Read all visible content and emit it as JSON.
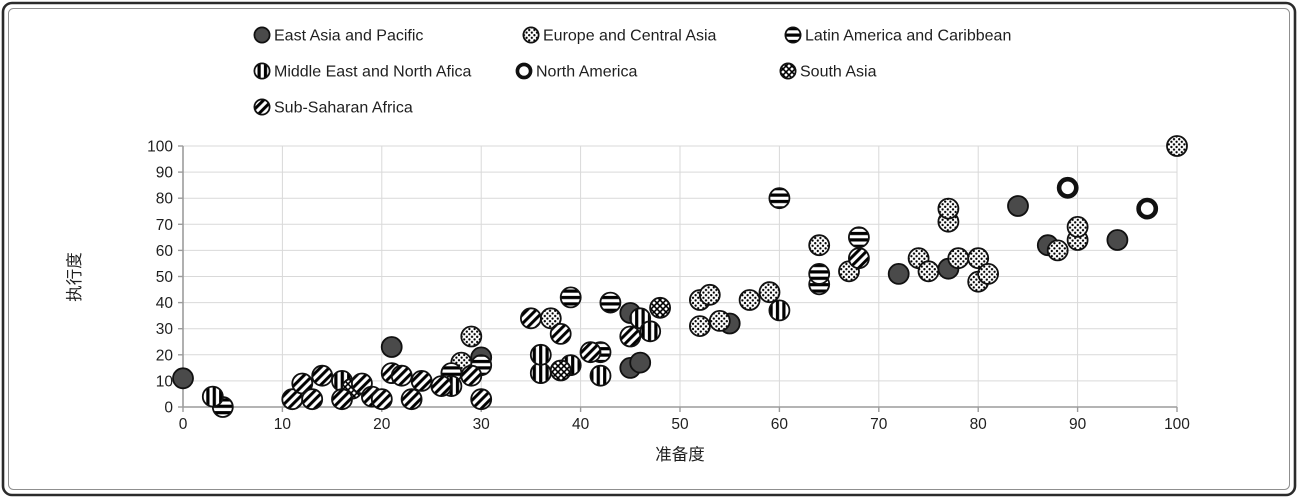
{
  "frame": {
    "background": "#ffffff",
    "border_color": "#2b2b2b",
    "inner_border_color": "#8f8f8f"
  },
  "colors": {
    "solid_point_fill": "#4a4a4a",
    "point_outline": "#111111",
    "gridline": "#d9d9d9",
    "axis_line": "#9c9c9c",
    "text": "#1f1f1f"
  },
  "chart_data": {
    "type": "scatter",
    "title": "",
    "xlabel": "准备度",
    "ylabel": "执行度",
    "xlim": [
      0,
      100
    ],
    "ylim": [
      0,
      100
    ],
    "xticks": [
      0,
      10,
      20,
      30,
      40,
      50,
      60,
      70,
      80,
      90,
      100
    ],
    "yticks": [
      0,
      10,
      20,
      30,
      40,
      50,
      60,
      70,
      80,
      90,
      100
    ],
    "grid": "both-light-gray",
    "legend_position": "top-left-three-rows",
    "series": [
      {
        "name": "East Asia and Pacific",
        "marker": "filled-circle",
        "points": [
          [
            0,
            11
          ],
          [
            21,
            23
          ],
          [
            30,
            19
          ],
          [
            45,
            36
          ],
          [
            45,
            15
          ],
          [
            46,
            17
          ],
          [
            55,
            32
          ],
          [
            72,
            51
          ],
          [
            77,
            53
          ],
          [
            84,
            77
          ],
          [
            87,
            62
          ],
          [
            94,
            64
          ]
        ]
      },
      {
        "name": "Europe and Central Asia",
        "marker": "dotted-circle",
        "points": [
          [
            28,
            17
          ],
          [
            29,
            27
          ],
          [
            37,
            34
          ],
          [
            52,
            31
          ],
          [
            52,
            41
          ],
          [
            53,
            43
          ],
          [
            54,
            33
          ],
          [
            57,
            41
          ],
          [
            59,
            44
          ],
          [
            64,
            62
          ],
          [
            67,
            52
          ],
          [
            74,
            57
          ],
          [
            75,
            52
          ],
          [
            77,
            71
          ],
          [
            77,
            76
          ],
          [
            78,
            57
          ],
          [
            80,
            48
          ],
          [
            80,
            57
          ],
          [
            81,
            51
          ],
          [
            88,
            60
          ],
          [
            90,
            64
          ],
          [
            90,
            69
          ],
          [
            100,
            100
          ]
        ]
      },
      {
        "name": "Latin America and Caribbean",
        "marker": "horizontal-stripe-circle",
        "points": [
          [
            4,
            0
          ],
          [
            27,
            13
          ],
          [
            30,
            16
          ],
          [
            39,
            42
          ],
          [
            42,
            21
          ],
          [
            43,
            40
          ],
          [
            60,
            80
          ],
          [
            64,
            47
          ],
          [
            64,
            51
          ],
          [
            68,
            65
          ]
        ]
      },
      {
        "name": "Middle East and North Afica",
        "marker": "vertical-stripe-circle",
        "points": [
          [
            3,
            4
          ],
          [
            16,
            10
          ],
          [
            27,
            8
          ],
          [
            36,
            13
          ],
          [
            36,
            20
          ],
          [
            39,
            16
          ],
          [
            42,
            12
          ],
          [
            46,
            34
          ],
          [
            47,
            29
          ],
          [
            60,
            37
          ]
        ]
      },
      {
        "name": "North America",
        "marker": "bold-open-circle",
        "points": [
          [
            89,
            84
          ],
          [
            97,
            76
          ]
        ]
      },
      {
        "name": "South Asia",
        "marker": "crosshatch-circle",
        "points": [
          [
            17,
            7
          ],
          [
            38,
            14
          ],
          [
            48,
            38
          ]
        ]
      },
      {
        "name": "Sub-Saharan Africa",
        "marker": "diagonal-stripe-circle",
        "points": [
          [
            11,
            3
          ],
          [
            12,
            9
          ],
          [
            13,
            3
          ],
          [
            14,
            12
          ],
          [
            16,
            3
          ],
          [
            18,
            9
          ],
          [
            19,
            4
          ],
          [
            20,
            3
          ],
          [
            21,
            13
          ],
          [
            22,
            12
          ],
          [
            23,
            3
          ],
          [
            24,
            10
          ],
          [
            26,
            8
          ],
          [
            29,
            12
          ],
          [
            30,
            3
          ],
          [
            35,
            34
          ],
          [
            38,
            28
          ],
          [
            41,
            21
          ],
          [
            45,
            27
          ],
          [
            68,
            57
          ]
        ]
      }
    ]
  }
}
